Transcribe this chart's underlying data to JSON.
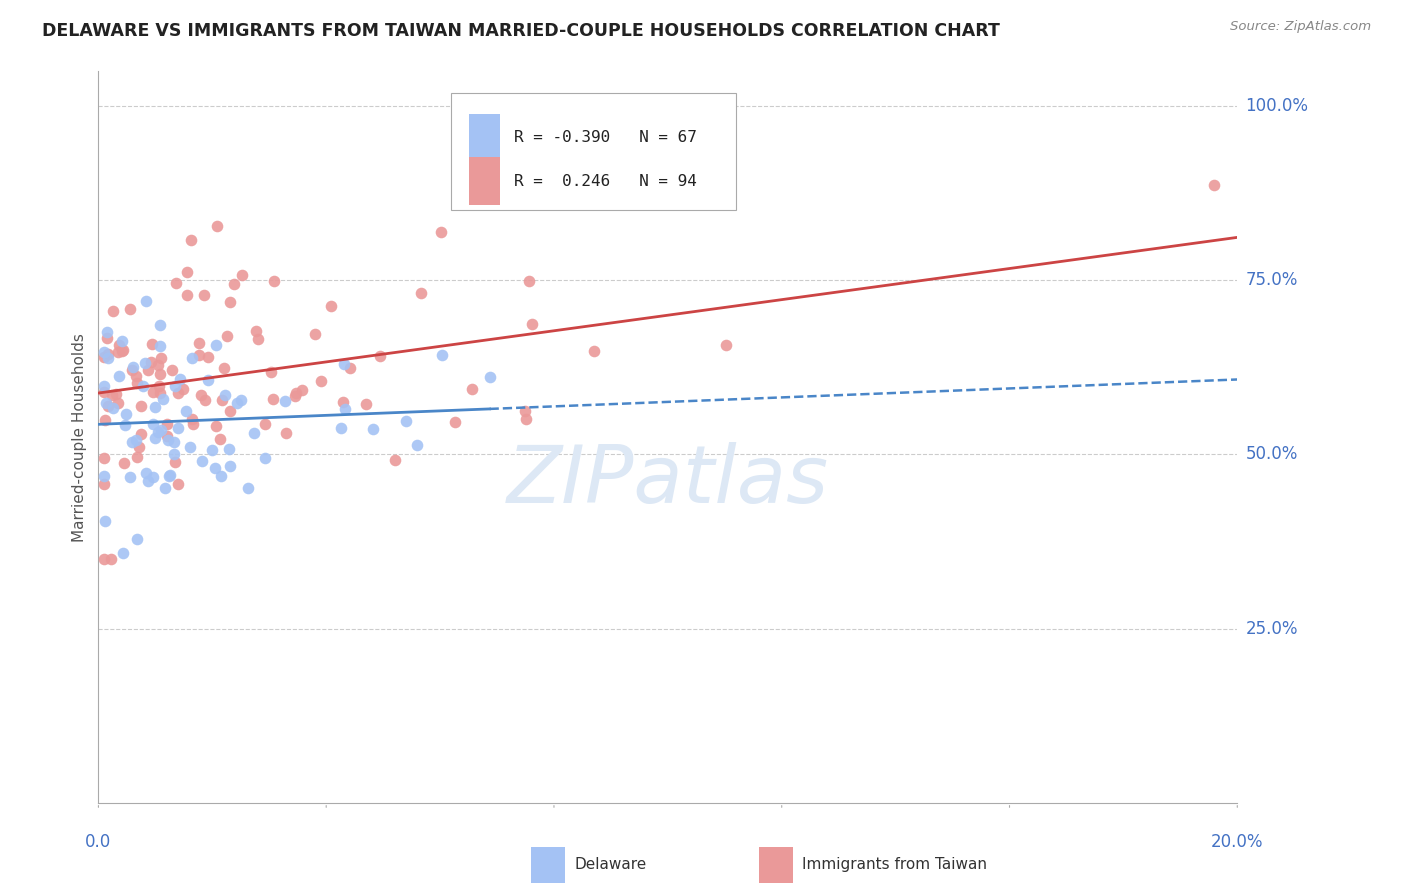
{
  "title": "DELAWARE VS IMMIGRANTS FROM TAIWAN MARRIED-COUPLE HOUSEHOLDS CORRELATION CHART",
  "source": "Source: ZipAtlas.com",
  "ylabel": "Married-couple Households",
  "legend_delaware": "Delaware",
  "legend_taiwan": "Immigrants from Taiwan",
  "R_delaware": -0.39,
  "N_delaware": 67,
  "R_taiwan": 0.246,
  "N_taiwan": 94,
  "delaware_color": "#a4c2f4",
  "taiwan_color": "#ea9999",
  "delaware_line_color": "#4a86c8",
  "taiwan_line_color": "#cc4444",
  "watermark_color": "#dde8f5",
  "title_color": "#222222",
  "source_color": "#888888",
  "axis_label_color": "#4472c4",
  "ylabel_color": "#555555",
  "grid_color": "#cccccc",
  "spine_color": "#aaaaaa",
  "xlim": [
    0.0,
    0.2
  ],
  "ylim": [
    0.0,
    1.05
  ],
  "ytick_positions": [
    0.25,
    0.5,
    0.75,
    1.0
  ],
  "ytick_labels": [
    "25.0%",
    "50.0%",
    "75.0%",
    "100.0%"
  ]
}
